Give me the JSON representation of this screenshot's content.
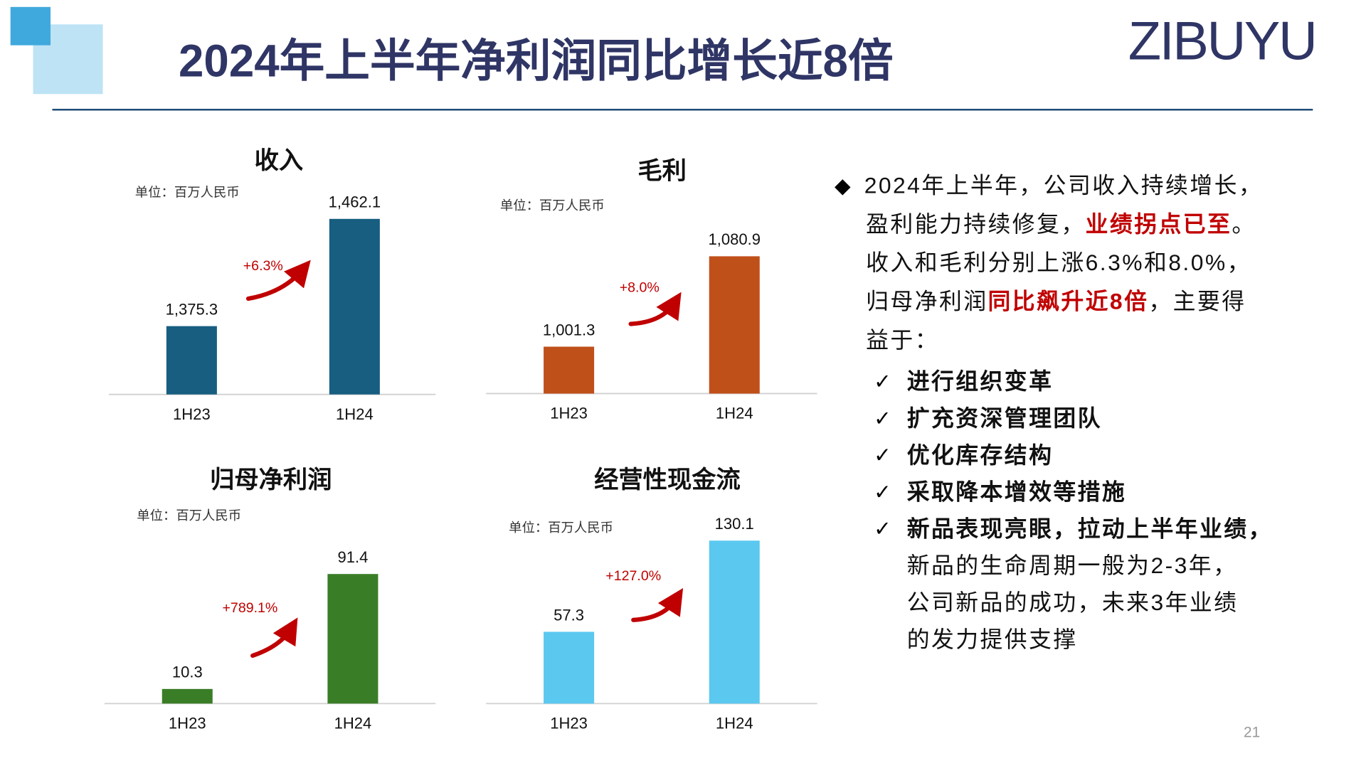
{
  "title": "2024年上半年净利润同比增长近8倍",
  "logo": "ZIBUYU",
  "page_number": "21",
  "chart_data": [
    {
      "type": "bar",
      "title": "收入",
      "subtitle": "单位：百万人民币",
      "categories": [
        "1H23",
        "1H24"
      ],
      "values": [
        1375.3,
        1462.1
      ],
      "value_labels": [
        "1,375.3",
        "1,462.1"
      ],
      "color": "#175e80",
      "ylim": [
        1320,
        1468
      ],
      "annotation": "+6.3%"
    },
    {
      "type": "bar",
      "title": "毛利",
      "subtitle": "单位：百万人民币",
      "categories": [
        "1H23",
        "1H24"
      ],
      "values": [
        1001.3,
        1080.9
      ],
      "value_labels": [
        "1,001.3",
        "1,080.9"
      ],
      "color": "#c0501a",
      "ylim": [
        960,
        1121
      ],
      "annotation": "+8.0%"
    },
    {
      "type": "bar",
      "title": "归母净利润",
      "subtitle": "单位：百万人民币",
      "categories": [
        "1H23",
        "1H24"
      ],
      "values": [
        10.3,
        91.4
      ],
      "color": "#3a7d27",
      "ylim": [
        0,
        129
      ],
      "annotation": "+789.1%"
    },
    {
      "type": "bar",
      "title": "经营性现金流",
      "subtitle": "单位：百万人民币",
      "categories": [
        "1H23",
        "1H24"
      ],
      "values": [
        57.3,
        130.1
      ],
      "color": "#5bc8f0",
      "ylim": [
        0,
        146
      ],
      "annotation": "+127.0%"
    }
  ],
  "summary": [
    [
      {
        "text": "2024年上半年，公司收入持续增长，"
      }
    ],
    [
      {
        "text": "盈利能力持续修复，"
      },
      {
        "text": "业绩拐点已至",
        "highlight": true
      },
      {
        "text": "。"
      }
    ],
    [
      {
        "text": "收入和毛利分别上涨6.3%和8.0%，"
      }
    ],
    [
      {
        "text": "归母净利润"
      },
      {
        "text": "同比飙升近8倍",
        "highlight": true
      },
      {
        "text": "，主要得"
      }
    ],
    [
      {
        "text": "益于："
      }
    ]
  ],
  "measures": [
    [
      "进行组织变革"
    ],
    [
      "扩充资深管理团队"
    ],
    [
      "优化库存结构"
    ],
    [
      "采取降本增效等措施"
    ],
    [
      "新品表现亮眼，拉动上半年业绩，",
      "新品的生命周期一般为2-3年，",
      "公司新品的成功，未来3年业绩",
      "的发力提供支撑"
    ]
  ]
}
